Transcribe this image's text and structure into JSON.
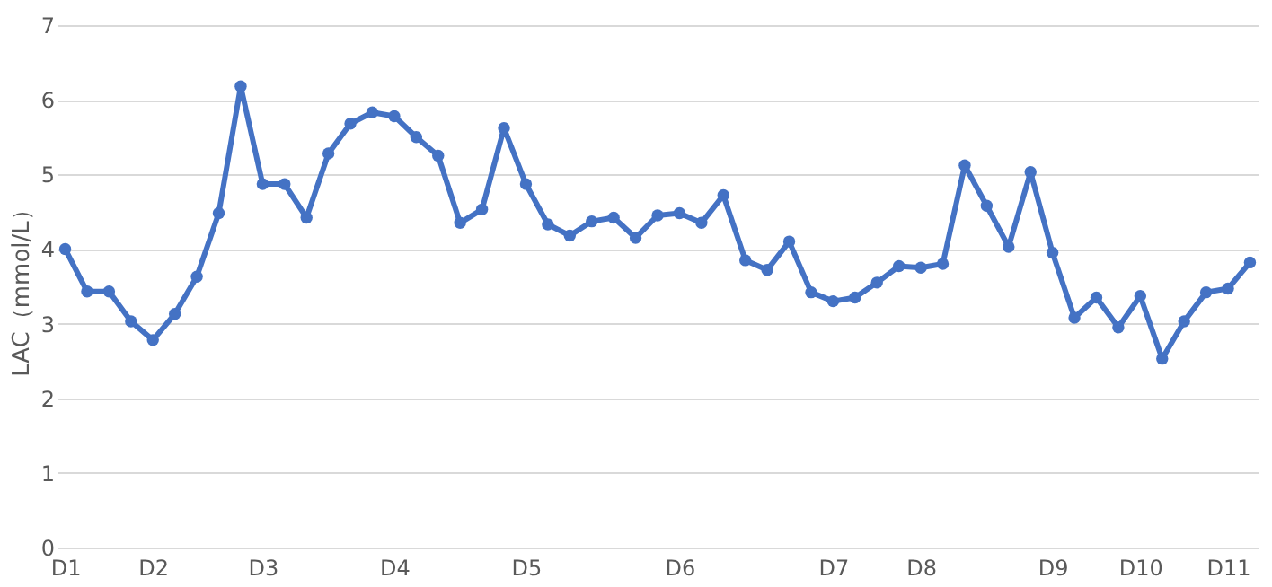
{
  "chart_data": {
    "type": "line",
    "ylabel": "LAC（mmol/L）",
    "categories": [
      "D1",
      null,
      null,
      null,
      "D2",
      null,
      null,
      null,
      null,
      "D3",
      null,
      null,
      null,
      null,
      null,
      "D4",
      null,
      null,
      null,
      null,
      null,
      "D5",
      null,
      null,
      null,
      null,
      null,
      null,
      "D6",
      null,
      null,
      null,
      null,
      null,
      null,
      "D7",
      null,
      null,
      null,
      "D8",
      null,
      null,
      null,
      null,
      null,
      "D9",
      null,
      null,
      null,
      "D10",
      null,
      null,
      null,
      "D11",
      null
    ],
    "series": [
      {
        "color": "#4472c4",
        "values": [
          4.0,
          3.43,
          3.43,
          3.03,
          2.78,
          3.13,
          3.63,
          4.48,
          6.18,
          4.87,
          4.87,
          4.42,
          5.28,
          5.68,
          5.83,
          5.78,
          5.5,
          5.25,
          4.35,
          4.53,
          5.62,
          4.87,
          4.33,
          4.18,
          4.37,
          4.42,
          4.15,
          4.45,
          4.48,
          4.35,
          4.72,
          3.85,
          3.72,
          4.1,
          3.42,
          3.3,
          3.35,
          3.55,
          3.77,
          3.75,
          3.8,
          5.12,
          4.58,
          4.03,
          5.03,
          3.95,
          3.08,
          3.35,
          2.95,
          3.37,
          2.53,
          3.03,
          3.42,
          3.47,
          3.82
        ]
      }
    ],
    "ylim": [
      0,
      7
    ],
    "yticks": [
      0,
      1,
      2,
      3,
      4,
      5,
      6,
      7
    ],
    "grid": "y",
    "marker": "circle",
    "line_style": "solid"
  }
}
